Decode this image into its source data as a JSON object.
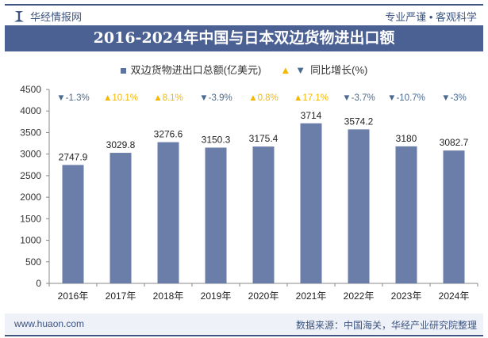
{
  "header": {
    "brand": "华经情报网",
    "slogan": "专业严谨 • 客观科学"
  },
  "footer": {
    "website": "www.huaon.com",
    "source": "数据来源：中国海关，华经产业研究院整理"
  },
  "colors": {
    "bar": "#6b7ea9",
    "up": "#f5b800",
    "down": "#4a6a8f",
    "banner": "#4b6193"
  },
  "chart_data": {
    "type": "bar",
    "title": "2016-2024年中国与日本双边货物进出口额",
    "categories": [
      "2016年",
      "2017年",
      "2018年",
      "2019年",
      "2020年",
      "2021年",
      "2022年",
      "2023年",
      "2024年"
    ],
    "series": [
      {
        "name": "双边货物进出口总额(亿美元)",
        "values": [
          2747.9,
          3029.8,
          3276.6,
          3150.3,
          3175.4,
          3714,
          3574.2,
          3180,
          3082.7
        ]
      },
      {
        "name": "同比增长(%)",
        "values": [
          -1.3,
          10.1,
          8.1,
          -3.9,
          0.8,
          17.1,
          -3.7,
          -10.7,
          -3
        ]
      }
    ],
    "growth_labels": [
      "-1.3%",
      "10.1%",
      "8.1%",
      "-3.9%",
      "0.8%",
      "17.1%",
      "-3.7%",
      "-10.7%",
      "-3%"
    ],
    "value_labels": [
      "2747.9",
      "3029.8",
      "3276.6",
      "3150.3",
      "3175.4",
      "3714",
      "3574.2",
      "3180",
      "3082.7"
    ],
    "ylim": [
      0,
      4500
    ],
    "yticks": [
      0,
      500,
      1000,
      1500,
      2000,
      2500,
      3000,
      3500,
      4000,
      4500
    ],
    "grid": false,
    "legend_position": "top"
  }
}
